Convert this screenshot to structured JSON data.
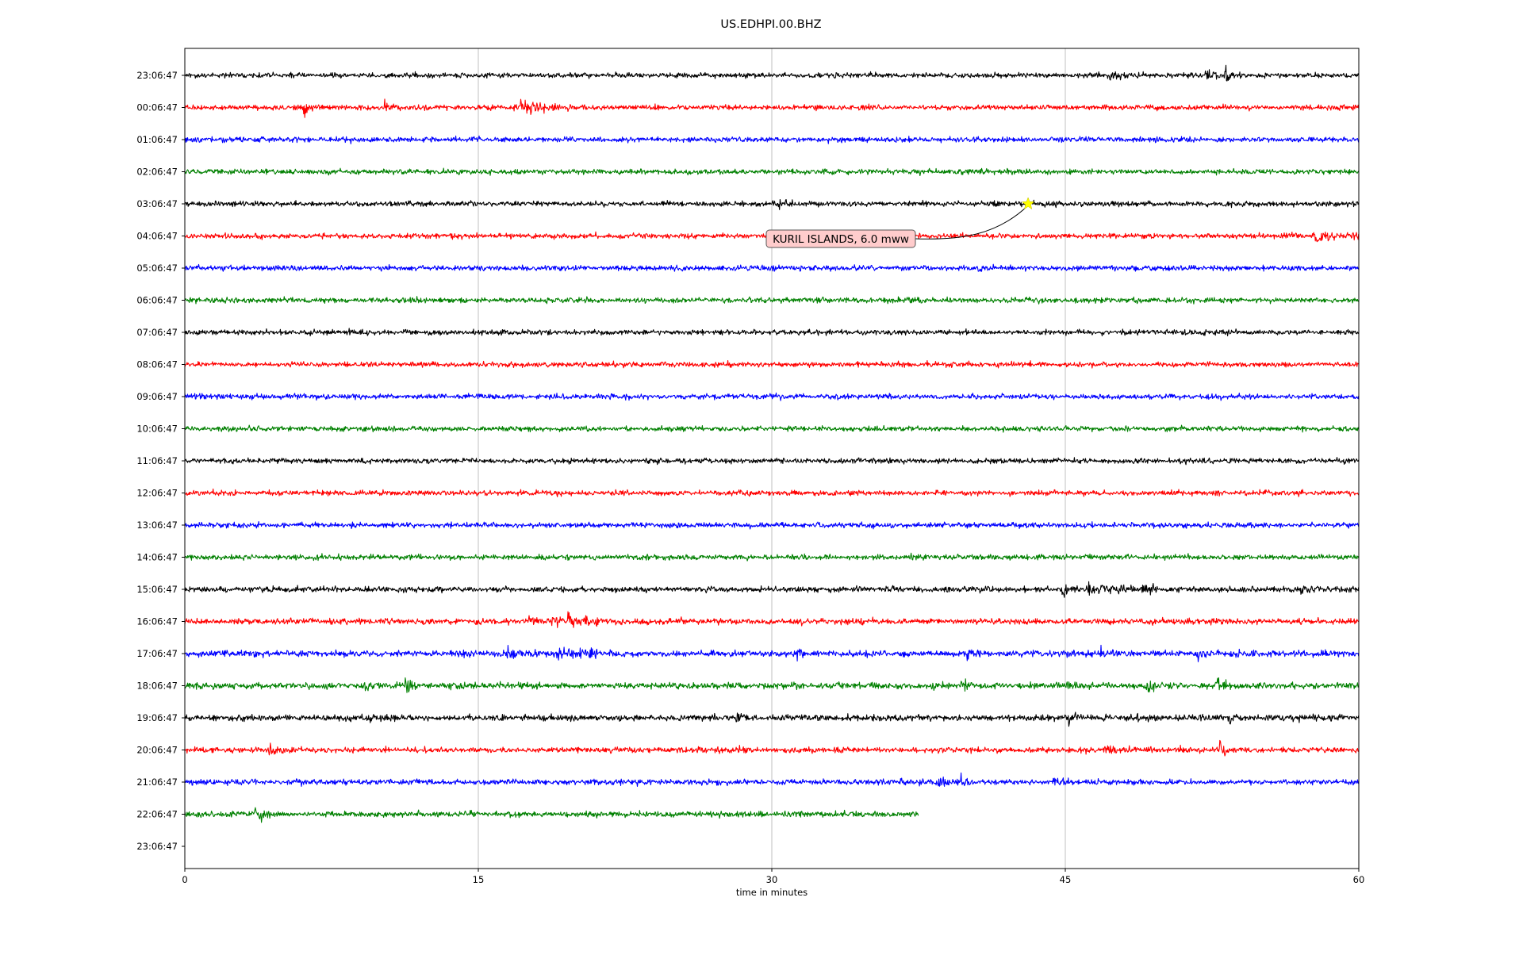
{
  "chart_data": {
    "type": "line",
    "title": "US.EDHPI.00.BHZ",
    "xlabel": "time in minutes",
    "ylabel": "",
    "xlim": [
      0,
      60
    ],
    "x_ticks": [
      "0",
      "15",
      "30",
      "45",
      "60"
    ],
    "x_tick_values": [
      0,
      15,
      30,
      45,
      60
    ],
    "grid": "vertical lines at x ticks",
    "y_tick_labels": [
      "23:06:47",
      "00:06:47",
      "01:06:47",
      "02:06:47",
      "03:06:47",
      "04:06:47",
      "05:06:47",
      "06:06:47",
      "07:06:47",
      "08:06:47",
      "09:06:47",
      "10:06:47",
      "11:06:47",
      "12:06:47",
      "13:06:47",
      "14:06:47",
      "15:06:47",
      "16:06:47",
      "17:06:47",
      "18:06:47",
      "19:06:47",
      "20:06:47",
      "21:06:47",
      "22:06:47",
      "23:06:47"
    ],
    "trace_colors": [
      "#000000",
      "#ff0000",
      "#0000ff",
      "#008000"
    ],
    "traces": [
      {
        "row": 0,
        "color": "#000000",
        "x_end": 60,
        "noise": 1.0,
        "events": [
          [
            47.3,
            6,
            0.9
          ],
          [
            52.2,
            9,
            0.4
          ],
          [
            53.2,
            8,
            0.3
          ]
        ]
      },
      {
        "row": 1,
        "color": "#ff0000",
        "x_end": 60,
        "noise": 1.0,
        "events": [
          [
            6.1,
            9,
            0.3
          ],
          [
            10.2,
            8,
            0.3
          ],
          [
            17.2,
            12,
            1.0
          ]
        ]
      },
      {
        "row": 2,
        "color": "#0000ff",
        "x_end": 60,
        "noise": 1.0,
        "events": []
      },
      {
        "row": 3,
        "color": "#008000",
        "x_end": 60,
        "noise": 1.0,
        "events": []
      },
      {
        "row": 4,
        "color": "#000000",
        "x_end": 60,
        "noise": 1.0,
        "events": [
          [
            30.0,
            9,
            0.8
          ]
        ]
      },
      {
        "row": 5,
        "color": "#ff0000",
        "x_end": 60,
        "noise": 1.0,
        "events": [
          [
            57.8,
            7,
            1.5
          ]
        ]
      },
      {
        "row": 6,
        "color": "#0000ff",
        "x_end": 60,
        "noise": 1.0,
        "events": []
      },
      {
        "row": 7,
        "color": "#008000",
        "x_end": 60,
        "noise": 1.0,
        "events": []
      },
      {
        "row": 8,
        "color": "#000000",
        "x_end": 60,
        "noise": 1.0,
        "events": []
      },
      {
        "row": 9,
        "color": "#ff0000",
        "x_end": 60,
        "noise": 1.0,
        "events": []
      },
      {
        "row": 10,
        "color": "#0000ff",
        "x_end": 60,
        "noise": 1.0,
        "events": []
      },
      {
        "row": 11,
        "color": "#008000",
        "x_end": 60,
        "noise": 1.0,
        "events": []
      },
      {
        "row": 12,
        "color": "#000000",
        "x_end": 60,
        "noise": 1.0,
        "events": []
      },
      {
        "row": 13,
        "color": "#ff0000",
        "x_end": 60,
        "noise": 1.0,
        "events": []
      },
      {
        "row": 14,
        "color": "#0000ff",
        "x_end": 60,
        "noise": 1.0,
        "events": []
      },
      {
        "row": 15,
        "color": "#008000",
        "x_end": 60,
        "noise": 1.0,
        "events": []
      },
      {
        "row": 16,
        "color": "#000000",
        "x_end": 60,
        "noise": 1.1,
        "events": [
          [
            44.9,
            14,
            0.3
          ],
          [
            46.2,
            6,
            1.8
          ],
          [
            49.0,
            6,
            0.4
          ],
          [
            57.0,
            5,
            0.8
          ]
        ]
      },
      {
        "row": 17,
        "color": "#ff0000",
        "x_end": 60,
        "noise": 1.1,
        "events": [
          [
            18.8,
            8,
            0.5
          ],
          [
            19.6,
            8,
            1.2
          ],
          [
            17.6,
            7,
            0.2
          ]
        ]
      },
      {
        "row": 18,
        "color": "#0000ff",
        "x_end": 60,
        "noise": 1.2,
        "events": [
          [
            13.9,
            6,
            0.3
          ],
          [
            16.5,
            6,
            1.0
          ],
          [
            18.9,
            9,
            1.5
          ],
          [
            31.3,
            5,
            0.3
          ],
          [
            40.0,
            5,
            0.3
          ],
          [
            45.2,
            5,
            0.2
          ],
          [
            46.8,
            6,
            0.3
          ],
          [
            51.8,
            5,
            0.2
          ],
          [
            53.5,
            5,
            0.2
          ]
        ]
      },
      {
        "row": 19,
        "color": "#008000",
        "x_end": 60,
        "noise": 1.2,
        "events": [
          [
            9.2,
            5,
            0.4
          ],
          [
            11.3,
            8,
            0.3
          ],
          [
            13.6,
            6,
            0.3
          ],
          [
            38.0,
            6,
            0.3
          ],
          [
            39.7,
            6,
            0.3
          ],
          [
            49.2,
            8,
            0.3
          ],
          [
            52.8,
            8,
            0.3
          ]
        ]
      },
      {
        "row": 20,
        "color": "#000000",
        "x_end": 60,
        "noise": 1.2,
        "events": [
          [
            28.2,
            5,
            0.3
          ],
          [
            45.2,
            7,
            0.4
          ],
          [
            53.4,
            5,
            0.3
          ]
        ]
      },
      {
        "row": 21,
        "color": "#ff0000",
        "x_end": 60,
        "noise": 1.1,
        "events": [
          [
            4.3,
            6,
            0.3
          ],
          [
            47.0,
            7,
            0.4
          ],
          [
            50.7,
            7,
            0.3
          ],
          [
            52.9,
            7,
            0.3
          ]
        ]
      },
      {
        "row": 22,
        "color": "#0000ff",
        "x_end": 60,
        "noise": 1.1,
        "events": [
          [
            38.5,
            7,
            0.4
          ],
          [
            39.7,
            5,
            0.3
          ],
          [
            44.4,
            5,
            0.4
          ]
        ]
      },
      {
        "row": 23,
        "color": "#008000",
        "x_end": 37.5,
        "noise": 1.1,
        "events": [
          [
            3.6,
            8,
            0.5
          ]
        ]
      }
    ],
    "annotation": {
      "text": "KURIL ISLANDS, 6.0 mww",
      "row": 4,
      "x": 43.1,
      "marker": "star",
      "marker_color": "#ffff00",
      "box_color": "#ffcccc"
    }
  }
}
